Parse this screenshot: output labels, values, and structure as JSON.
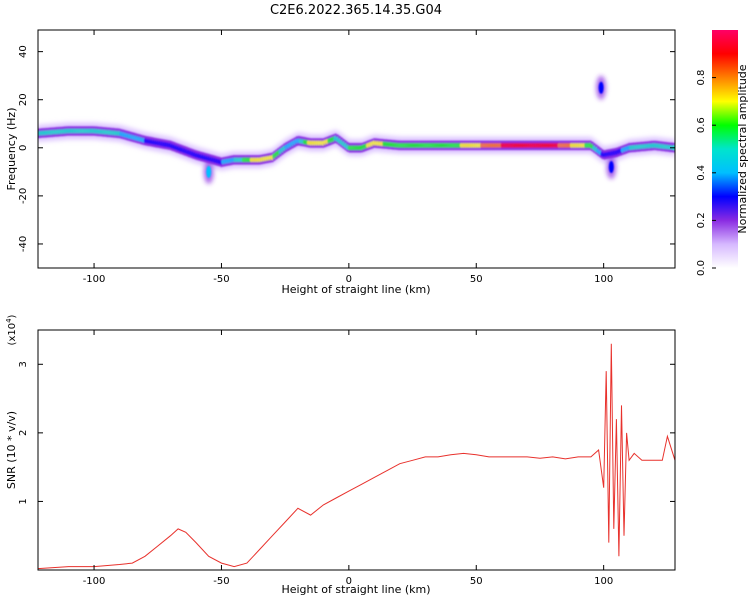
{
  "figure_title": "C2E6.2022.365.14.35.G04",
  "colors": {
    "line": "#e8312c",
    "axis": "#000000",
    "colormap": [
      "#ffffff",
      "#d6b8ff",
      "#8a2be2",
      "#0000ff",
      "#00bfff",
      "#00e5cc",
      "#00ff00",
      "#ffff00",
      "#ff8000",
      "#ff0000",
      "#ff0066"
    ]
  },
  "chart_data": [
    {
      "type": "heatmap",
      "title": "C2E6.2022.365.14.35.G04",
      "xlabel": "Height of straight line (km)",
      "ylabel": "Frequency (Hz)",
      "xlim": [
        -122,
        128
      ],
      "ylim": [
        -50,
        49
      ],
      "xticks": [
        -100,
        -50,
        0,
        50,
        100
      ],
      "yticks": [
        -40,
        -20,
        0,
        20,
        40
      ],
      "grid": false,
      "colorbar": {
        "label": "Normalized spectral amplitude",
        "range": [
          0,
          1
        ],
        "ticks": [
          "0.0",
          "0.2",
          "0.4",
          "0.6",
          "0.8"
        ]
      },
      "ridge": {
        "x": [
          -122,
          -110,
          -100,
          -90,
          -80,
          -70,
          -60,
          -50,
          -45,
          -40,
          -35,
          -30,
          -25,
          -20,
          -15,
          -10,
          -5,
          0,
          5,
          10,
          20,
          40,
          60,
          80,
          95,
          100,
          105,
          110,
          120,
          128
        ],
        "freq": [
          6,
          7,
          7,
          6,
          3,
          1,
          -3,
          -6,
          -5,
          -5,
          -5,
          -4,
          0,
          3,
          2,
          2,
          4,
          0,
          0,
          2,
          1,
          1,
          1,
          1,
          1,
          -3,
          -2,
          0,
          1,
          0
        ],
        "amplitude": [
          0.5,
          0.45,
          0.5,
          0.45,
          0.35,
          0.3,
          0.3,
          0.35,
          0.45,
          0.6,
          0.75,
          0.65,
          0.45,
          0.4,
          0.7,
          0.75,
          0.5,
          0.55,
          0.6,
          0.7,
          0.55,
          0.6,
          0.85,
          0.9,
          0.6,
          0.3,
          0.25,
          0.45,
          0.5,
          0.5
        ]
      },
      "secondary_features": [
        {
          "x": -55,
          "freq": -10,
          "amplitude": 0.4
        },
        {
          "x": 99,
          "freq": 25,
          "amplitude": 0.25
        },
        {
          "x": 103,
          "freq": -8,
          "amplitude": 0.25
        }
      ]
    },
    {
      "type": "line",
      "xlabel": "Height of straight line (km)",
      "ylabel": "SNR (10 * v/v)",
      "yscale_label": "(x10",
      "yscale_exp": "4",
      "xlim": [
        -122,
        128
      ],
      "ylim": [
        0,
        3.5
      ],
      "xticks": [
        -100,
        -50,
        0,
        50,
        100
      ],
      "yticks": [
        1,
        2,
        3
      ],
      "grid": false,
      "series": [
        {
          "x": [
            -122,
            -110,
            -100,
            -90,
            -85,
            -80,
            -75,
            -70,
            -67,
            -64,
            -60,
            -55,
            -50,
            -45,
            -40,
            -35,
            -30,
            -25,
            -20,
            -15,
            -10,
            -5,
            0,
            5,
            10,
            15,
            20,
            25,
            30,
            35,
            40,
            45,
            50,
            55,
            60,
            65,
            70,
            75,
            80,
            85,
            90,
            95,
            98,
            100,
            101,
            102,
            103,
            104,
            105,
            106,
            107,
            108,
            109,
            110,
            112,
            115,
            120,
            123,
            125,
            128
          ],
          "y": [
            0.02,
            0.05,
            0.05,
            0.08,
            0.1,
            0.2,
            0.35,
            0.5,
            0.6,
            0.55,
            0.4,
            0.2,
            0.1,
            0.05,
            0.1,
            0.3,
            0.5,
            0.7,
            0.9,
            0.8,
            0.95,
            1.05,
            1.15,
            1.25,
            1.35,
            1.45,
            1.55,
            1.6,
            1.65,
            1.65,
            1.68,
            1.7,
            1.68,
            1.65,
            1.65,
            1.65,
            1.65,
            1.63,
            1.65,
            1.62,
            1.65,
            1.65,
            1.75,
            1.2,
            2.9,
            0.4,
            3.3,
            0.6,
            2.2,
            0.2,
            2.4,
            0.5,
            2.0,
            1.6,
            1.7,
            1.6,
            1.6,
            1.6,
            1.95,
            1.6
          ]
        }
      ]
    }
  ]
}
